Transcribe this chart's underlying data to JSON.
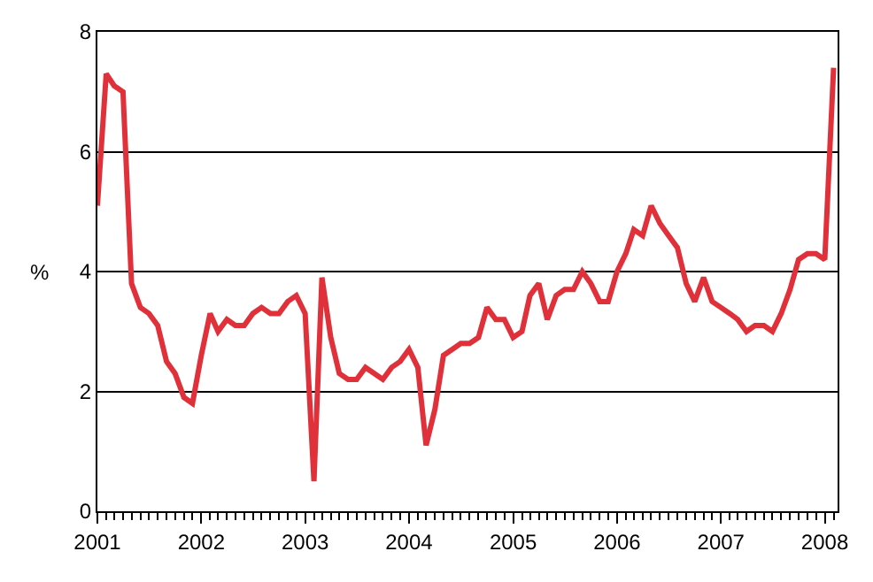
{
  "chart_data": {
    "type": "line",
    "ylabel": "%",
    "x": [
      "2001-01",
      "2001-02",
      "2001-03",
      "2001-04",
      "2001-05",
      "2001-06",
      "2001-07",
      "2001-08",
      "2001-09",
      "2001-10",
      "2001-11",
      "2001-12",
      "2002-01",
      "2002-02",
      "2002-03",
      "2002-04",
      "2002-05",
      "2002-06",
      "2002-07",
      "2002-08",
      "2002-09",
      "2002-10",
      "2002-11",
      "2002-12",
      "2003-01",
      "2003-02",
      "2003-03",
      "2003-04",
      "2003-05",
      "2003-06",
      "2003-07",
      "2003-08",
      "2003-09",
      "2003-10",
      "2003-11",
      "2003-12",
      "2004-01",
      "2004-02",
      "2004-03",
      "2004-04",
      "2004-05",
      "2004-06",
      "2004-07",
      "2004-08",
      "2004-09",
      "2004-10",
      "2004-11",
      "2004-12",
      "2005-01",
      "2005-02",
      "2005-03",
      "2005-04",
      "2005-05",
      "2005-06",
      "2005-07",
      "2005-08",
      "2005-09",
      "2005-10",
      "2005-11",
      "2005-12",
      "2006-01",
      "2006-02",
      "2006-03",
      "2006-04",
      "2006-05",
      "2006-06",
      "2006-07",
      "2006-08",
      "2006-09",
      "2006-10",
      "2006-11",
      "2006-12",
      "2007-01",
      "2007-02",
      "2007-03",
      "2007-04",
      "2007-05",
      "2007-06",
      "2007-07",
      "2007-08",
      "2007-09",
      "2007-10",
      "2007-11",
      "2007-12",
      "2008-01",
      "2008-02"
    ],
    "series": [
      {
        "color": "#e0313a",
        "values": [
          5.1,
          7.3,
          7.1,
          7.0,
          3.8,
          3.4,
          3.3,
          3.1,
          2.5,
          2.3,
          1.9,
          1.8,
          2.6,
          3.3,
          3.0,
          3.2,
          3.1,
          3.1,
          3.3,
          3.4,
          3.3,
          3.3,
          3.5,
          3.6,
          3.3,
          0.5,
          3.9,
          2.9,
          2.3,
          2.2,
          2.2,
          2.4,
          2.3,
          2.2,
          2.4,
          2.5,
          2.7,
          2.4,
          1.1,
          1.7,
          2.6,
          2.7,
          2.8,
          2.8,
          2.9,
          3.4,
          3.2,
          3.2,
          2.9,
          3.0,
          3.6,
          3.8,
          3.2,
          3.6,
          3.7,
          3.7,
          4.0,
          3.8,
          3.5,
          3.5,
          4.0,
          4.3,
          4.7,
          4.6,
          5.1,
          4.8,
          4.6,
          4.4,
          3.8,
          3.5,
          3.9,
          3.5,
          3.4,
          3.3,
          3.2,
          3.0,
          3.1,
          3.1,
          3.0,
          3.3,
          3.7,
          4.2,
          4.3,
          4.3,
          4.2,
          7.4
        ]
      }
    ],
    "xlim": [
      "2001-01",
      "2008-02-15"
    ],
    "xticks": [
      {
        "value": "2001-01",
        "label": "2001"
      },
      {
        "value": "2002-01",
        "label": "2002"
      },
      {
        "value": "2003-01",
        "label": "2003"
      },
      {
        "value": "2004-01",
        "label": "2004"
      },
      {
        "value": "2005-01",
        "label": "2005"
      },
      {
        "value": "2006-01",
        "label": "2006"
      },
      {
        "value": "2007-01",
        "label": "2007"
      },
      {
        "value": "2008-01",
        "label": "2008"
      }
    ],
    "ylim": [
      0,
      8
    ],
    "yticks": [
      0,
      2,
      4,
      6,
      8
    ],
    "grid": "y",
    "legend": false,
    "marker": "none",
    "line_style": "solid"
  }
}
